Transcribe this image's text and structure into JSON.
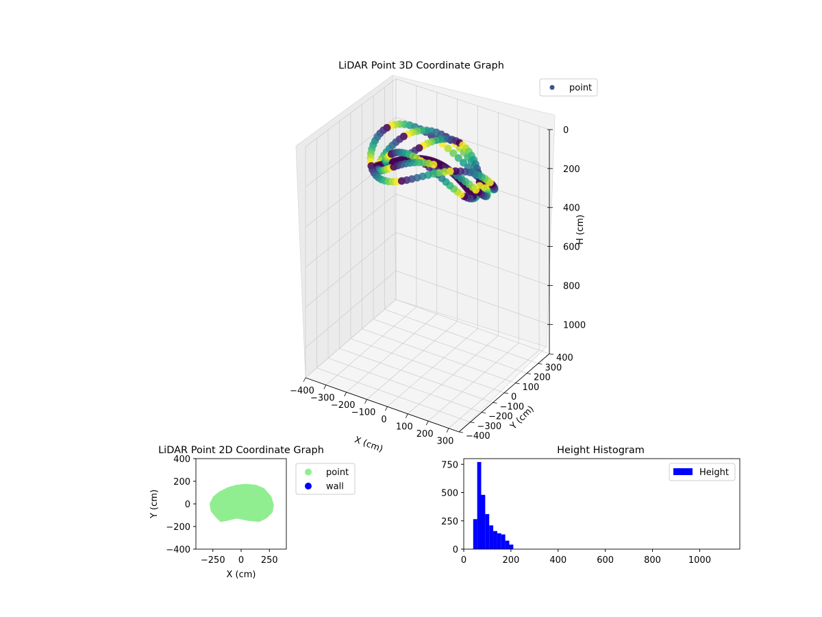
{
  "chart_data": [
    {
      "type": "scatter3d",
      "title": "LiDAR Point 3D Coordinate Graph",
      "xlabel": "X (cm)",
      "ylabel": "Y (cm)",
      "zlabel": "H (cm)",
      "xticks": [
        -400,
        -300,
        -200,
        -100,
        0,
        100,
        200,
        300
      ],
      "yticks": [
        -400,
        -300,
        -200,
        -100,
        0,
        100,
        200,
        300,
        400
      ],
      "zticks": [
        0,
        200,
        400,
        600,
        800,
        1000
      ],
      "xlim": [
        -400,
        350
      ],
      "ylim": [
        -400,
        400
      ],
      "zlim": [
        0,
        1150
      ],
      "z_inverted": true,
      "grid": true,
      "colormap": "viridis",
      "legend": {
        "position": "top-right",
        "entries": [
          "point"
        ],
        "marker_color": "#3b528b"
      },
      "point_cloud": {
        "x_range": [
          -290,
          290
        ],
        "y_range": [
          -160,
          160
        ],
        "height_range": [
          40,
          210
        ]
      }
    },
    {
      "type": "scatter",
      "title": "LiDAR Point 2D Coordinate Graph",
      "xlabel": "X (cm)",
      "ylabel": "Y (cm)",
      "xticks": [
        -250,
        0,
        250
      ],
      "yticks": [
        -400,
        -200,
        0,
        200,
        400
      ],
      "xlim": [
        -400,
        400
      ],
      "ylim": [
        -400,
        400
      ],
      "legend": {
        "position": "outside-right",
        "entries": [
          {
            "name": "point",
            "color": "#90ee90"
          },
          {
            "name": "wall",
            "color": "#0000ff"
          }
        ]
      },
      "series": [
        {
          "name": "point",
          "color": "#90ee90",
          "region": "filled blob",
          "outline": [
            [
              -270,
              0
            ],
            [
              -260,
              -60
            ],
            [
              -220,
              -110
            ],
            [
              -180,
              -150
            ],
            [
              -120,
              -140
            ],
            [
              -40,
              -120
            ],
            [
              60,
              -140
            ],
            [
              160,
              -150
            ],
            [
              220,
              -120
            ],
            [
              270,
              -70
            ],
            [
              280,
              -10
            ],
            [
              260,
              60
            ],
            [
              200,
              130
            ],
            [
              130,
              160
            ],
            [
              40,
              168
            ],
            [
              -40,
              160
            ],
            [
              -110,
              140
            ],
            [
              -190,
              100
            ],
            [
              -240,
              60
            ]
          ]
        },
        {
          "name": "wall",
          "color": "#0000ff",
          "points": []
        }
      ]
    },
    {
      "type": "bar",
      "title": "Height Histogram",
      "xticks": [
        0,
        200,
        400,
        600,
        800,
        1000
      ],
      "yticks": [
        0,
        250,
        500,
        750
      ],
      "xlim": [
        0,
        1170
      ],
      "ylim": [
        0,
        800
      ],
      "legend": {
        "position": "top-right",
        "entries": [
          {
            "name": "Height",
            "color": "#0000ff"
          }
        ]
      },
      "series": [
        {
          "name": "Height",
          "color": "#0000ff",
          "bin_edges": [
            40,
            57,
            74,
            91,
            108,
            125,
            142,
            159,
            176,
            193,
            210
          ],
          "counts": [
            265,
            770,
            480,
            310,
            210,
            160,
            140,
            130,
            75,
            40
          ]
        }
      ]
    }
  ]
}
